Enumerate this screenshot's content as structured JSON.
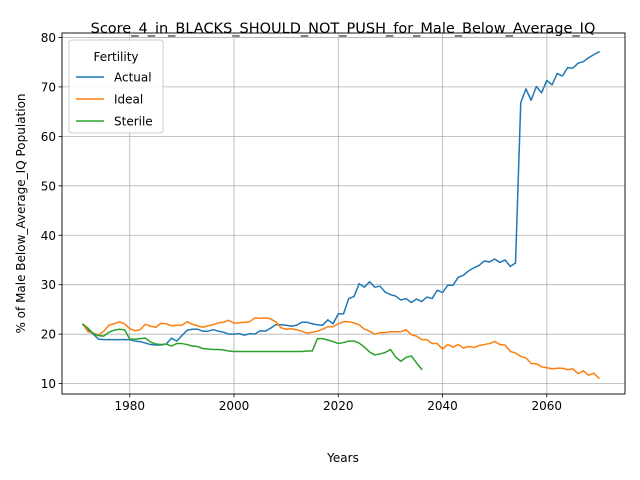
{
  "chart_data": {
    "type": "line",
    "title": "Score_4_in_BLACKS_SHOULD_NOT_PUSH_for_Male_Below_Average_IQ",
    "xlabel": "Years",
    "ylabel": "% of Male Below_Average_IQ Population",
    "xlim": [
      1967,
      2075
    ],
    "ylim": [
      7.9,
      80.9
    ],
    "x_ticks": [
      1980,
      2000,
      2020,
      2040,
      2060
    ],
    "y_ticks": [
      10,
      20,
      30,
      40,
      50,
      60,
      70,
      80
    ],
    "grid": true,
    "legend": {
      "title": "Fertility",
      "placement": "top-left"
    },
    "series": [
      {
        "name": "Actual",
        "color": "#1f77b4",
        "x": [
          1971,
          1972,
          1973,
          1974,
          1975,
          1976,
          1977,
          1978,
          1979,
          1980,
          1981,
          1982,
          1983,
          1984,
          1985,
          1986,
          1987,
          1988,
          1989,
          1990,
          1991,
          1992,
          1993,
          1994,
          1995,
          1996,
          1997,
          1998,
          1999,
          2000,
          2001,
          2002,
          2003,
          2004,
          2005,
          2006,
          2007,
          2008,
          2009,
          2010,
          2011,
          2012,
          2013,
          2014,
          2015,
          2016,
          2017,
          2018,
          2019,
          2020,
          2021,
          2022,
          2023,
          2024,
          2025,
          2026,
          2027,
          2028,
          2029,
          2030,
          2031,
          2032,
          2033,
          2034,
          2035,
          2036,
          2037,
          2038,
          2039,
          2040,
          2041,
          2042,
          2043,
          2044,
          2045,
          2046,
          2047,
          2048,
          2049,
          2050,
          2051,
          2052,
          2053,
          2054,
          2055,
          2056,
          2057,
          2058,
          2059,
          2060,
          2061,
          2062,
          2063,
          2064,
          2065,
          2066,
          2067,
          2068,
          2069,
          2070
        ],
        "y": [
          22.0,
          20.8,
          20.0,
          19.0,
          18.9,
          18.9,
          18.9,
          18.9,
          18.9,
          18.9,
          18.6,
          18.5,
          18.2,
          17.9,
          17.8,
          17.8,
          18.0,
          19.2,
          18.6,
          19.7,
          20.8,
          21.0,
          21.0,
          20.6,
          20.6,
          20.9,
          20.6,
          20.4,
          20.0,
          20.0,
          20.1,
          19.8,
          20.1,
          20.0,
          20.7,
          20.6,
          21.2,
          21.9,
          21.9,
          21.8,
          21.6,
          21.8,
          22.4,
          22.4,
          22.1,
          21.9,
          21.8,
          22.9,
          22.1,
          24.1,
          24.1,
          27.2,
          27.6,
          30.2,
          29.5,
          30.6,
          29.5,
          29.7,
          28.5,
          28.0,
          27.7,
          26.9,
          27.2,
          26.4,
          27.1,
          26.6,
          27.5,
          27.2,
          28.9,
          28.4,
          29.9,
          29.9,
          31.5,
          31.9,
          32.8,
          33.4,
          33.9,
          34.8,
          34.6,
          35.2,
          34.5,
          35.0,
          33.7,
          34.4,
          66.8,
          69.6,
          67.3,
          70.1,
          68.8,
          71.3,
          70.4,
          72.7,
          72.2,
          73.9,
          73.8,
          74.8,
          75.1,
          75.9,
          76.5,
          77.1
        ]
      },
      {
        "name": "Ideal",
        "color": "#ff7f0e",
        "x": [
          1971,
          1972,
          1973,
          1974,
          1975,
          1976,
          1977,
          1978,
          1979,
          1980,
          1981,
          1982,
          1983,
          1984,
          1985,
          1986,
          1987,
          1988,
          1989,
          1990,
          1991,
          1992,
          1993,
          1994,
          1995,
          1996,
          1997,
          1998,
          1999,
          2000,
          2001,
          2002,
          2003,
          2004,
          2005,
          2006,
          2007,
          2008,
          2009,
          2010,
          2011,
          2012,
          2013,
          2014,
          2015,
          2016,
          2017,
          2018,
          2019,
          2020,
          2021,
          2022,
          2023,
          2024,
          2025,
          2026,
          2027,
          2028,
          2029,
          2030,
          2031,
          2032,
          2033,
          2034,
          2035,
          2036,
          2037,
          2038,
          2039,
          2040,
          2041,
          2042,
          2043,
          2044,
          2045,
          2046,
          2047,
          2048,
          2049,
          2050,
          2051,
          2052,
          2053,
          2054,
          2055,
          2056,
          2057,
          2058,
          2059,
          2060,
          2061,
          2062,
          2063,
          2064,
          2065,
          2066,
          2067,
          2068,
          2069,
          2070
        ],
        "y": [
          22.0,
          20.5,
          20.2,
          19.8,
          20.6,
          21.8,
          22.1,
          22.5,
          22.1,
          21.1,
          20.7,
          20.9,
          22.0,
          21.6,
          21.4,
          22.2,
          22.1,
          21.7,
          21.8,
          21.8,
          22.5,
          22.0,
          21.7,
          21.4,
          21.7,
          21.9,
          22.3,
          22.4,
          22.8,
          22.2,
          22.3,
          22.4,
          22.5,
          23.3,
          23.2,
          23.3,
          23.1,
          22.5,
          21.3,
          21.0,
          21.1,
          20.9,
          20.6,
          20.2,
          20.4,
          20.6,
          21.0,
          21.5,
          21.5,
          22.1,
          22.5,
          22.5,
          22.3,
          21.9,
          21.0,
          20.6,
          20.0,
          20.3,
          20.3,
          20.5,
          20.5,
          20.5,
          20.9,
          19.9,
          19.6,
          18.9,
          18.9,
          18.1,
          18.1,
          17.0,
          17.9,
          17.4,
          17.9,
          17.2,
          17.5,
          17.3,
          17.7,
          17.9,
          18.1,
          18.5,
          17.9,
          17.8,
          16.5,
          16.2,
          15.5,
          15.2,
          14.1,
          14.0,
          13.4,
          13.2,
          13.0,
          13.1,
          13.1,
          12.8,
          13.0,
          12.0,
          12.6,
          11.7,
          12.1,
          11.1
        ]
      },
      {
        "name": "Sterile",
        "color": "#2ca02c",
        "x": [
          1971,
          1972,
          1973,
          1974,
          1975,
          1976,
          1977,
          1978,
          1979,
          1980,
          1981,
          1982,
          1983,
          1984,
          1985,
          1986,
          1987,
          1988,
          1989,
          1990,
          1991,
          1992,
          1993,
          1994,
          1995,
          1996,
          1997,
          1998,
          1999,
          2000,
          2001,
          2002,
          2003,
          2004,
          2005,
          2006,
          2007,
          2008,
          2009,
          2010,
          2011,
          2012,
          2013,
          2014,
          2015,
          2016,
          2017,
          2018,
          2019,
          2020,
          2021,
          2022,
          2023,
          2024,
          2025,
          2026,
          2027,
          2028,
          2029,
          2030,
          2031,
          2032,
          2033,
          2034,
          2035,
          2036
        ],
        "y": [
          22.0,
          21.2,
          20.1,
          19.7,
          19.6,
          20.4,
          20.8,
          21.0,
          20.9,
          19.0,
          19.0,
          19.1,
          19.2,
          18.4,
          18.0,
          17.9,
          18.0,
          17.6,
          18.1,
          18.1,
          17.9,
          17.6,
          17.5,
          17.1,
          17.0,
          16.9,
          16.9,
          16.8,
          16.6,
          16.5,
          16.5,
          16.5,
          16.5,
          16.5,
          16.5,
          16.5,
          16.5,
          16.5,
          16.5,
          16.5,
          16.5,
          16.5,
          16.5,
          16.6,
          16.6,
          19.1,
          19.1,
          18.8,
          18.5,
          18.1,
          18.3,
          18.6,
          18.6,
          18.2,
          17.4,
          16.4,
          15.8,
          16.0,
          16.3,
          16.9,
          15.4,
          14.5,
          15.3,
          15.6,
          14.2,
          12.9
        ]
      }
    ]
  }
}
